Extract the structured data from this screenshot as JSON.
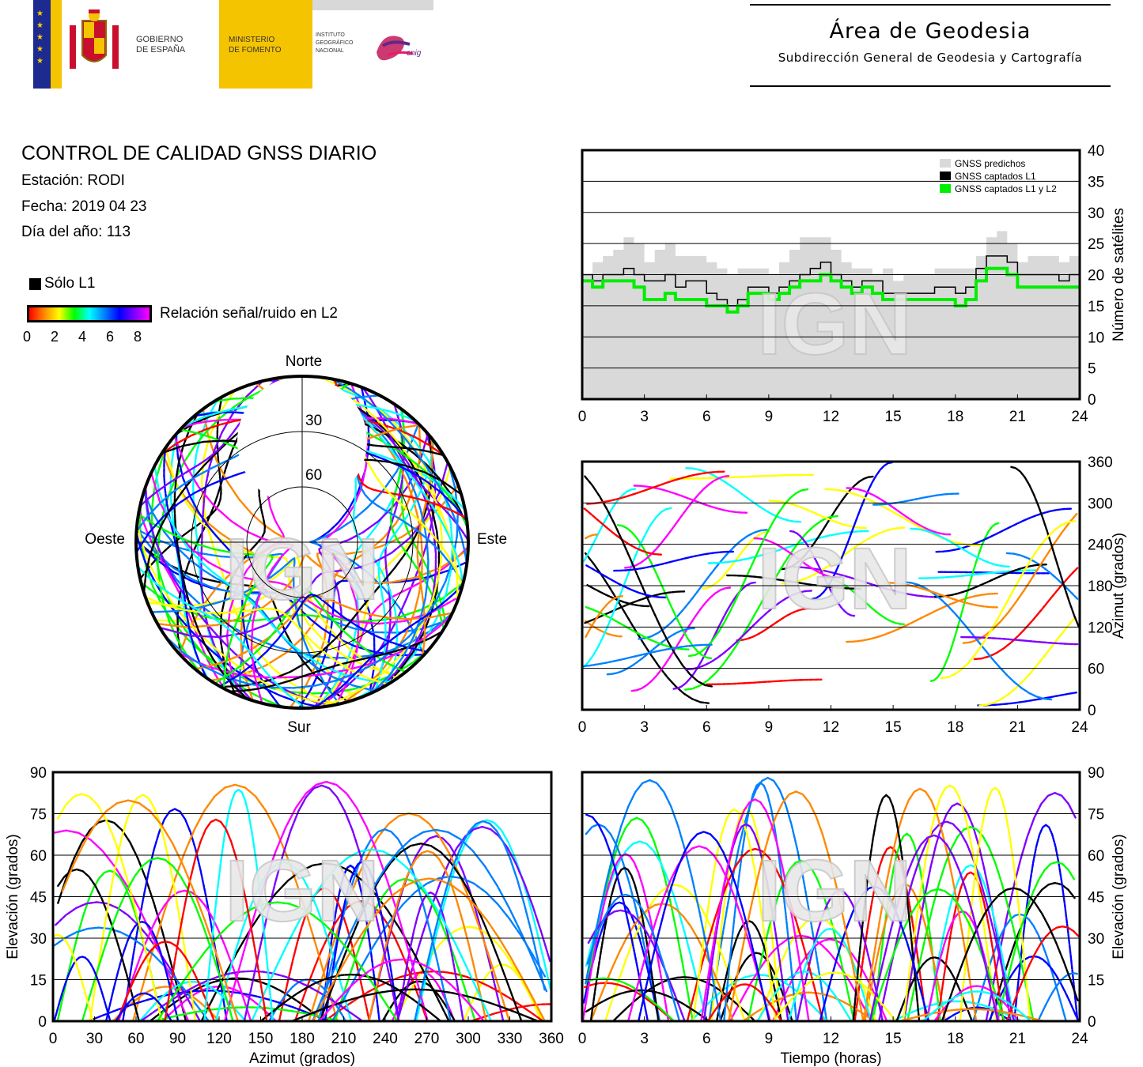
{
  "header": {
    "gov_line1": "GOBIERNO",
    "gov_line2": "DE ESPAÑA",
    "min_line1": "MINISTERIO",
    "min_line2": "DE FOMENTO",
    "inst_line1": "INSTITUTO",
    "inst_line2": "GEOGRÁFICO",
    "inst_line3": "NACIONAL",
    "cnig": "cnig",
    "area_title": "Área de Geodesia",
    "area_subtitle": "Subdirección General de Geodesia y Cartografía"
  },
  "info": {
    "title": "CONTROL DE CALIDAD GNSS DIARIO",
    "station": "Estación: RODI",
    "date": "Fecha: 2019 04 23",
    "doy": "Día del año: 113"
  },
  "legend": {
    "l1_only": "Sólo L1",
    "snr_label": "Relación señal/ruido en L2",
    "snr_ticks": [
      "0",
      "2",
      "4",
      "6",
      "8"
    ],
    "colorbar": [
      "#ff0000",
      "#ff8800",
      "#ffff00",
      "#00ff00",
      "#00ffff",
      "#0080ff",
      "#0000ff",
      "#8000ff",
      "#ff00ff"
    ]
  },
  "watermark": "IGN",
  "chart_data": [
    {
      "id": "skyplot",
      "type": "scatter",
      "projection": "polar",
      "directions": {
        "north": "Norte",
        "south": "Sur",
        "east": "Este",
        "west": "Oeste"
      },
      "rings": [
        "30",
        "60"
      ],
      "note_tracks": "many multicolored satellite tracks coloured by L2 SNR"
    },
    {
      "id": "satellites",
      "type": "area",
      "ylabel": "Número de satélites",
      "xlim": [
        0,
        24
      ],
      "ylim": [
        0,
        40
      ],
      "xticks": [
        "0",
        "3",
        "6",
        "9",
        "12",
        "15",
        "18",
        "21",
        "24"
      ],
      "yticks": [
        "0",
        "5",
        "10",
        "15",
        "20",
        "25",
        "30",
        "35",
        "40"
      ],
      "legend": [
        "GNSS predichos",
        "GNSS captados L1",
        "GNSS captados L1 y L2"
      ],
      "series": [
        {
          "name": "GNSS predichos",
          "color": "#d9d9d9",
          "x": [
            0,
            0.5,
            1,
            1.5,
            2,
            2.5,
            3,
            3.5,
            4,
            4.5,
            5,
            5.5,
            6,
            6.5,
            7,
            7.5,
            8,
            8.5,
            9,
            9.5,
            10,
            10.5,
            11,
            11.5,
            12,
            12.5,
            13,
            13.5,
            14,
            14.5,
            15,
            15.5,
            16,
            16.5,
            17,
            17.5,
            18,
            18.5,
            19,
            19.5,
            20,
            20.5,
            21,
            21.5,
            22,
            22.5,
            23,
            23.5,
            24
          ],
          "y": [
            20,
            22,
            23,
            24,
            26,
            25,
            22,
            24,
            25,
            23,
            23,
            23,
            22,
            21,
            20,
            21,
            21,
            21,
            20,
            22,
            24,
            26,
            26,
            26,
            24,
            22,
            21,
            21,
            20,
            21,
            19,
            20,
            20,
            20,
            21,
            21,
            21,
            21,
            23,
            26,
            27,
            25,
            22,
            23,
            23,
            23,
            22,
            23,
            22
          ]
        },
        {
          "name": "GNSS captados L1",
          "color": "#000000",
          "x": [
            0,
            0.5,
            1,
            1.5,
            2,
            2.5,
            3,
            3.5,
            4,
            4.5,
            5,
            5.5,
            6,
            6.5,
            7,
            7.5,
            8,
            8.5,
            9,
            9.5,
            10,
            10.5,
            11,
            11.5,
            12,
            12.5,
            13,
            13.5,
            14,
            14.5,
            15,
            15.5,
            16,
            16.5,
            17,
            17.5,
            18,
            18.5,
            19,
            19.5,
            20,
            20.5,
            21,
            21.5,
            22,
            22.5,
            23,
            23.5,
            24
          ],
          "y": [
            20,
            19,
            20,
            20,
            21,
            20,
            19,
            19,
            20,
            18,
            19,
            19,
            17,
            16,
            15,
            16,
            18,
            18,
            17,
            18,
            19,
            20,
            21,
            22,
            20,
            19,
            18,
            19,
            19,
            17,
            17,
            17,
            17,
            17,
            18,
            18,
            17,
            18,
            21,
            23,
            23,
            22,
            20,
            20,
            20,
            20,
            19,
            20,
            20
          ]
        },
        {
          "name": "GNSS captados L1 y L2",
          "color": "#00ee00",
          "x": [
            0,
            0.5,
            1,
            1.5,
            2,
            2.5,
            3,
            3.5,
            4,
            4.5,
            5,
            5.5,
            6,
            6.5,
            7,
            7.5,
            8,
            8.5,
            9,
            9.5,
            10,
            10.5,
            11,
            11.5,
            12,
            12.5,
            13,
            13.5,
            14,
            14.5,
            15,
            15.5,
            16,
            16.5,
            17,
            17.5,
            18,
            18.5,
            19,
            19.5,
            20,
            20.5,
            21,
            21.5,
            22,
            22.5,
            23,
            23.5,
            24
          ],
          "y": [
            19,
            18,
            19,
            19,
            19,
            18,
            16,
            16,
            17,
            16,
            16,
            16,
            15,
            15,
            14,
            15,
            17,
            17,
            16,
            17,
            18,
            19,
            19,
            20,
            19,
            18,
            17,
            18,
            17,
            16,
            16,
            16,
            16,
            16,
            16,
            16,
            15,
            16,
            19,
            21,
            21,
            20,
            18,
            18,
            18,
            18,
            18,
            18,
            18
          ]
        }
      ]
    },
    {
      "id": "azimuth_time",
      "type": "scatter",
      "ylabel": "Azimut (grados)",
      "xlim": [
        0,
        24
      ],
      "ylim": [
        0,
        360
      ],
      "xticks": [
        "0",
        "3",
        "6",
        "9",
        "12",
        "15",
        "18",
        "21",
        "24"
      ],
      "yticks": [
        "0",
        "60",
        "120",
        "180",
        "240",
        "300",
        "360"
      ]
    },
    {
      "id": "elev_azimuth",
      "type": "scatter",
      "xlabel": "Azimut (grados)",
      "ylabel": "Elevación (grados)",
      "xlim": [
        0,
        360
      ],
      "ylim": [
        0,
        90
      ],
      "xticks": [
        "0",
        "30",
        "60",
        "90",
        "120",
        "150",
        "180",
        "210",
        "240",
        "270",
        "300",
        "330",
        "360"
      ],
      "yticks": [
        "0",
        "15",
        "30",
        "45",
        "60",
        "75",
        "90"
      ]
    },
    {
      "id": "elev_time",
      "type": "scatter",
      "xlabel": "Tiempo (horas)",
      "ylabel": "Elevación (grados)",
      "xlim": [
        0,
        24
      ],
      "ylim": [
        0,
        90
      ],
      "xticks": [
        "0",
        "3",
        "6",
        "9",
        "12",
        "15",
        "18",
        "21",
        "24"
      ],
      "yticks": [
        "0",
        "15",
        "30",
        "45",
        "60",
        "75",
        "90"
      ]
    }
  ]
}
